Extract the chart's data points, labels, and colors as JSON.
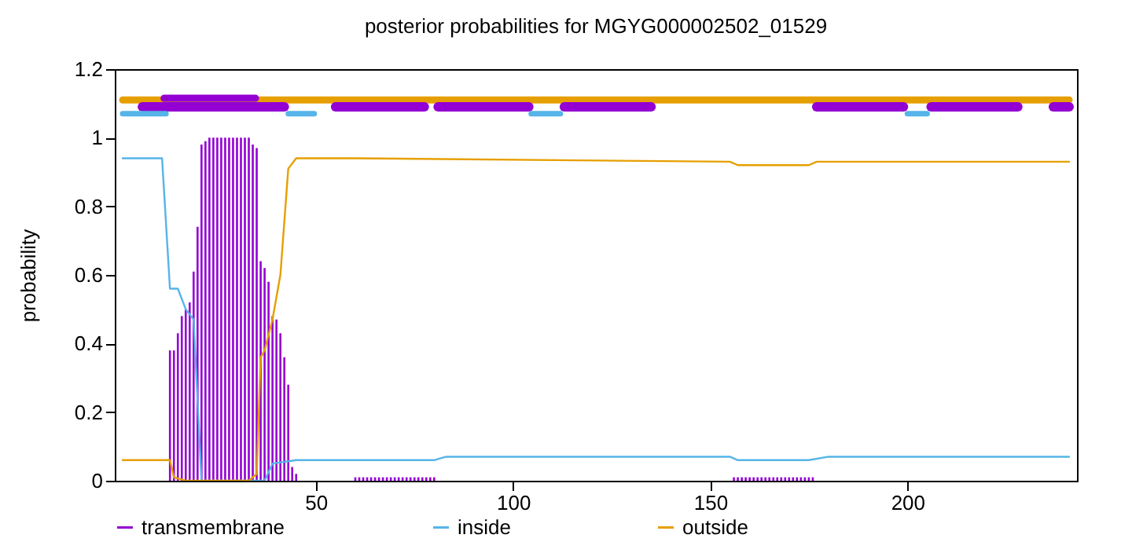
{
  "chart_data": {
    "type": "line",
    "title": "posterior probabilities for MGYG000002502_01529",
    "ylabel": "probability",
    "xlim": [
      1,
      241
    ],
    "xticks": [
      50,
      100,
      150,
      200
    ],
    "ylim": [
      0,
      1.2
    ],
    "yticks": [
      0,
      0.2,
      0.4,
      0.6,
      0.8,
      1,
      1.2
    ],
    "grid": false,
    "legend": "bottom",
    "series": [
      {
        "name": "transmembrane",
        "type": "bar",
        "color": "#9400d3",
        "x": [
          13,
          14,
          15,
          16,
          17,
          18,
          19,
          20,
          21,
          22,
          23,
          24,
          25,
          26,
          27,
          28,
          29,
          30,
          31,
          32,
          33,
          34,
          35,
          36,
          37,
          38,
          39,
          40,
          41,
          42,
          43,
          44,
          45,
          60,
          61,
          62,
          63,
          64,
          65,
          66,
          67,
          68,
          69,
          70,
          71,
          72,
          73,
          74,
          75,
          76,
          77,
          78,
          79,
          80,
          156,
          157,
          158,
          159,
          160,
          161,
          162,
          163,
          164,
          165,
          166,
          167,
          168,
          169,
          170,
          171,
          172,
          173,
          174,
          175,
          176
        ],
        "values": [
          0.38,
          0.38,
          0.43,
          0.48,
          0.5,
          0.52,
          0.61,
          0.74,
          0.98,
          0.99,
          1,
          1,
          1,
          1,
          1,
          1,
          1,
          1,
          1,
          1,
          1,
          0.98,
          0.97,
          0.64,
          0.62,
          0.58,
          0.48,
          0.47,
          0.43,
          0.36,
          0.28,
          0.04,
          0.02,
          0.01,
          0.01,
          0.01,
          0.01,
          0.01,
          0.01,
          0.01,
          0.01,
          0.01,
          0.01,
          0.01,
          0.01,
          0.01,
          0.01,
          0.01,
          0.01,
          0.01,
          0.01,
          0.01,
          0.01,
          0.01,
          0.01,
          0.01,
          0.01,
          0.01,
          0.01,
          0.01,
          0.01,
          0.01,
          0.01,
          0.01,
          0.01,
          0.01,
          0.01,
          0.01,
          0.01,
          0.01,
          0.01,
          0.01,
          0.01,
          0.01,
          0.01
        ]
      },
      {
        "name": "inside",
        "type": "line",
        "color": "#56b4e9",
        "x": [
          1,
          11,
          13,
          15,
          17,
          19,
          21,
          37,
          39,
          45,
          80,
          83,
          155,
          157,
          175,
          180,
          241
        ],
        "values": [
          0.94,
          0.94,
          0.56,
          0.56,
          0.5,
          0.47,
          0,
          0,
          0.05,
          0.06,
          0.06,
          0.07,
          0.07,
          0.06,
          0.06,
          0.07,
          0.07
        ]
      },
      {
        "name": "outside",
        "type": "line",
        "color": "#e69f00",
        "x": [
          1,
          13,
          14,
          17,
          33,
          35,
          36,
          37,
          39,
          41,
          43,
          45,
          60,
          155,
          157,
          175,
          177,
          241
        ],
        "values": [
          0.06,
          0.06,
          0.01,
          0,
          0,
          0.02,
          0.36,
          0.38,
          0.47,
          0.6,
          0.91,
          0.94,
          0.94,
          0.93,
          0.92,
          0.92,
          0.93,
          0.93
        ]
      },
      {
        "type": "line",
        "color": "#e69f00",
        "x": [
          1,
          241
        ],
        "values": [
          1.11,
          1.11
        ]
      },
      {
        "color": "#9400d3",
        "x": [
          6,
          42,
          null,
          55,
          77.5,
          null,
          81,
          104,
          null,
          113,
          135,
          null,
          177,
          199,
          null,
          206,
          228,
          null,
          237,
          241
        ],
        "values": [
          1.09,
          1.09,
          null,
          1.09,
          1.09,
          null,
          1.09,
          1.09,
          null,
          1.09,
          1.09,
          null,
          1.09,
          1.09,
          null,
          1.09,
          1.09,
          null,
          1.09,
          1.09
        ]
      },
      {
        "type": "line",
        "color": "#9400d3",
        "x": [
          11.5,
          34.7
        ],
        "values": [
          1.115,
          1.115
        ]
      },
      {
        "color": "#56b4e9",
        "x": [
          1,
          12,
          null,
          43,
          49.6,
          null,
          104.6,
          112,
          null,
          200,
          205
        ],
        "values": [
          1.07,
          1.07,
          null,
          1.07,
          1.07,
          null,
          1.07,
          1.07,
          null,
          1.07,
          1.07
        ]
      }
    ]
  }
}
